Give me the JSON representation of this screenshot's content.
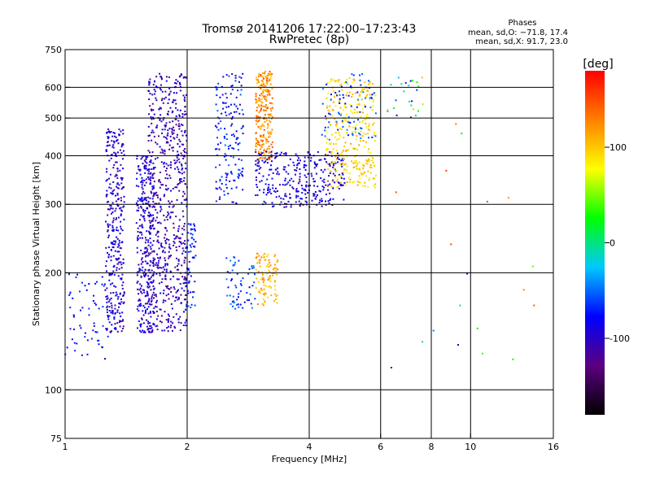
{
  "chart_data": {
    "type": "scatter",
    "title": "Tromsø 20141206 17:22:00–17:23:43",
    "subtitle": "RwPretec (8p)",
    "xlabel": "Frequency [MHz]",
    "ylabel": "Stationary phase Virtual Height [km]",
    "x_scale": "log",
    "y_scale": "log",
    "xlim": [
      1,
      16
    ],
    "ylim": [
      75,
      750
    ],
    "x_ticks": [
      1,
      2,
      4,
      6,
      8,
      10,
      16
    ],
    "y_ticks": [
      75,
      100,
      200,
      300,
      400,
      500,
      600,
      750
    ],
    "x_gridlines": [
      2,
      4,
      6,
      8,
      10
    ],
    "y_gridlines": [
      100,
      200,
      300,
      400,
      500,
      600
    ],
    "grid": true,
    "stats": {
      "heading": "Phases",
      "line1": "mean, sd,O: −71.8, 17.4",
      "line2": "mean, sd,X:  91.7, 23.0"
    },
    "colorbar": {
      "label": "[deg]",
      "range": [
        -180,
        180
      ],
      "ticks": [
        100,
        0,
        -100
      ],
      "colors": [
        "#000000",
        "#5b0080",
        "#0000ff",
        "#00c8ff",
        "#00ff00",
        "#ffff00",
        "#ff8000",
        "#ff0000"
      ]
    },
    "series": [
      {
        "x_range": [
          1.0,
          1.3
        ],
        "y_range": [
          120,
          200
        ],
        "n": 70,
        "phase": [
          -90,
          -60
        ]
      },
      {
        "x_range": [
          1.26,
          1.4
        ],
        "y_range": [
          140,
          470
        ],
        "n": 340,
        "phase": [
          -120,
          -75
        ]
      },
      {
        "x_range": [
          1.5,
          1.66
        ],
        "y_range": [
          140,
          400
        ],
        "n": 320,
        "phase": [
          -115,
          -70
        ]
      },
      {
        "x_range": [
          1.6,
          2.0
        ],
        "y_range": [
          140,
          650
        ],
        "n": 650,
        "phase": [
          -130,
          -80
        ]
      },
      {
        "x_range": [
          1.98,
          2.1
        ],
        "y_range": [
          160,
          270
        ],
        "n": 60,
        "phase": [
          -90,
          -55
        ]
      },
      {
        "x_range": [
          2.35,
          2.75
        ],
        "y_range": [
          300,
          650
        ],
        "n": 160,
        "phase": [
          -100,
          -50
        ]
      },
      {
        "x_range": [
          2.5,
          2.95
        ],
        "y_range": [
          160,
          220
        ],
        "n": 60,
        "phase": [
          -80,
          -40
        ]
      },
      {
        "x_range": [
          2.95,
          3.25
        ],
        "y_range": [
          390,
          660
        ],
        "n": 240,
        "phase": [
          100,
          150
        ]
      },
      {
        "x_range": [
          2.95,
          3.35
        ],
        "y_range": [
          165,
          225
        ],
        "n": 100,
        "phase": [
          90,
          130
        ]
      },
      {
        "x_range": [
          2.95,
          4.9
        ],
        "y_range": [
          295,
          410
        ],
        "n": 320,
        "phase": [
          -110,
          -70
        ]
      },
      {
        "x_range": [
          4.4,
          5.85
        ],
        "y_range": [
          330,
          640
        ],
        "n": 320,
        "phase": [
          70,
          120
        ]
      },
      {
        "x_range": [
          4.3,
          5.9
        ],
        "y_range": [
          440,
          650
        ],
        "n": 80,
        "phase": [
          -80,
          -40
        ]
      },
      {
        "x_range": [
          6.2,
          7.7
        ],
        "y_range": [
          500,
          650
        ],
        "n": 25,
        "phase": [
          -100,
          120
        ]
      },
      {
        "x_range": [
          6.3,
          14.5
        ],
        "y_range": [
          95,
          520
        ],
        "n": 20,
        "phase": [
          -150,
          160
        ]
      }
    ]
  }
}
